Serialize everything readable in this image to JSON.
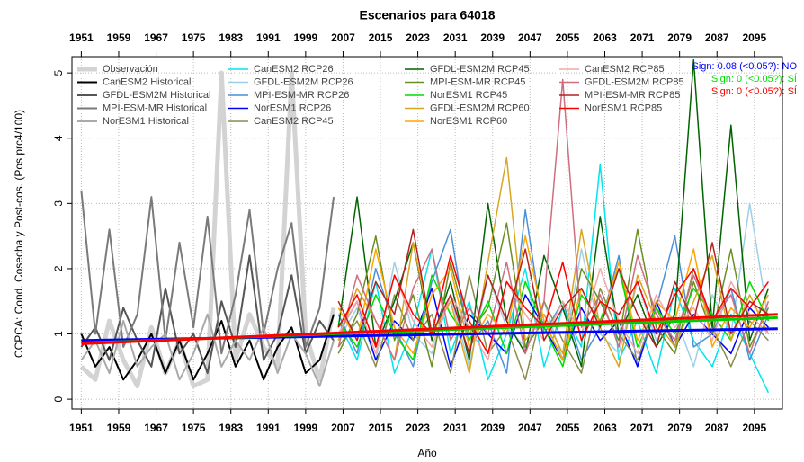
{
  "chart_data": {
    "type": "line",
    "title": "Escenarios  para 64018",
    "x_label": "Año",
    "y_label": "CCPCA: Cond. Cosecha y Post-cos. (Pos prc4/100)",
    "xlim": [
      1949,
      2101
    ],
    "ylim": [
      -0.15,
      5.25
    ],
    "xticks": [
      1951,
      1959,
      1967,
      1975,
      1983,
      1991,
      1999,
      2007,
      2015,
      2023,
      2031,
      2039,
      2047,
      2055,
      2063,
      2071,
      2079,
      2087,
      2095
    ],
    "yticks": [
      0,
      1,
      2,
      3,
      4,
      5
    ],
    "grid": true,
    "legend": "top-left",
    "series": [
      {
        "name": "Observación",
        "color": "#d3d3d3",
        "width": 5,
        "x": [
          1951,
          1954,
          1957,
          1960,
          1963,
          1966,
          1969,
          1972,
          1975,
          1978,
          1981,
          1984,
          1987,
          1990,
          1993,
          1996,
          1999,
          2002,
          2005
        ],
        "values": [
          0.5,
          0.3,
          1.2,
          0.6,
          0.2,
          1.1,
          0.4,
          0.9,
          0.2,
          0.3,
          5.0,
          0.6,
          1.3,
          0.8,
          0.5,
          5.0,
          1.0,
          0.3,
          1.4
        ]
      },
      {
        "name": "CanESM2 Historical",
        "color": "#000000",
        "width": 2,
        "x": [
          1951,
          1954,
          1957,
          1960,
          1963,
          1966,
          1969,
          1972,
          1975,
          1978,
          1981,
          1984,
          1987,
          1990,
          1993,
          1996,
          1999,
          2002,
          2005
        ],
        "values": [
          1.0,
          0.5,
          0.8,
          0.3,
          0.6,
          1.0,
          0.4,
          0.9,
          0.3,
          0.7,
          1.2,
          0.5,
          0.9,
          0.3,
          0.8,
          1.1,
          0.4,
          0.6,
          1.3
        ]
      },
      {
        "name": "GFDL-ESM2M Historical",
        "color": "#555555",
        "width": 2,
        "x": [
          1951,
          1954,
          1957,
          1960,
          1963,
          1966,
          1969,
          1972,
          1975,
          1978,
          1981,
          1984,
          1987,
          1990,
          1993,
          1996,
          1999,
          2002,
          2005
        ],
        "values": [
          0.8,
          1.1,
          0.6,
          1.4,
          0.9,
          0.5,
          1.7,
          0.7,
          1.0,
          0.4,
          1.5,
          0.8,
          2.2,
          0.6,
          1.0,
          1.9,
          0.7,
          1.2,
          0.9
        ]
      },
      {
        "name": "MPI-ESM-MR Historical",
        "color": "#7a7a7a",
        "width": 2,
        "x": [
          1951,
          1954,
          1957,
          1960,
          1963,
          1966,
          1969,
          1972,
          1975,
          1978,
          1981,
          1984,
          1987,
          1990,
          1993,
          1996,
          1999,
          2002,
          2005
        ],
        "values": [
          3.2,
          1.0,
          2.6,
          0.8,
          1.3,
          3.1,
          0.9,
          2.4,
          1.1,
          2.8,
          0.7,
          1.6,
          2.9,
          1.0,
          2.0,
          2.7,
          0.8,
          1.4,
          3.1
        ]
      },
      {
        "name": "NorESM1 Historical",
        "color": "#aaaaaa",
        "width": 2,
        "x": [
          1951,
          1954,
          1957,
          1960,
          1963,
          1966,
          1969,
          1972,
          1975,
          1978,
          1981,
          1984,
          1987,
          1990,
          1993,
          1996,
          1999,
          2002,
          2005
        ],
        "values": [
          0.6,
          0.9,
          0.4,
          1.2,
          0.5,
          0.8,
          1.0,
          0.3,
          0.7,
          1.3,
          0.5,
          0.9,
          0.6,
          1.1,
          0.4,
          1.0,
          0.7,
          0.2,
          0.9
        ]
      },
      {
        "name": "CanESM2 RCP26",
        "color": "#00e5ee",
        "width": 1.5,
        "x": [
          2006,
          2010,
          2014,
          2018,
          2022,
          2026,
          2030,
          2034,
          2038,
          2042,
          2046,
          2050,
          2054,
          2058,
          2062,
          2066,
          2070,
          2074,
          2078,
          2082,
          2086,
          2090,
          2094,
          2098
        ],
        "values": [
          1.2,
          0.6,
          1.8,
          0.4,
          1.1,
          2.3,
          0.7,
          1.5,
          0.3,
          1.0,
          2.0,
          0.5,
          1.4,
          0.8,
          3.6,
          0.6,
          1.2,
          0.4,
          1.7,
          0.9,
          0.5,
          1.3,
          0.7,
          0.1
        ]
      },
      {
        "name": "GFDL-ESM2M RCP26",
        "color": "#9fcfe8",
        "width": 1.5,
        "x": [
          2006,
          2010,
          2014,
          2018,
          2022,
          2026,
          2030,
          2034,
          2038,
          2042,
          2046,
          2050,
          2054,
          2058,
          2062,
          2066,
          2070,
          2074,
          2078,
          2082,
          2086,
          2090,
          2094,
          2098
        ],
        "values": [
          0.9,
          1.4,
          0.6,
          2.1,
          1.0,
          0.7,
          1.6,
          0.5,
          1.9,
          1.1,
          0.8,
          1.5,
          0.6,
          2.3,
          1.0,
          0.7,
          1.8,
          0.9,
          1.3,
          0.5,
          1.6,
          1.0,
          3.0,
          1.2
        ]
      },
      {
        "name": "MPI-ESM-MR RCP26",
        "color": "#4a90d9",
        "width": 1.5,
        "x": [
          2006,
          2010,
          2014,
          2018,
          2022,
          2026,
          2030,
          2034,
          2038,
          2042,
          2046,
          2050,
          2054,
          2058,
          2062,
          2066,
          2070,
          2074,
          2078,
          2082,
          2086,
          2090,
          2094,
          2098
        ],
        "values": [
          1.3,
          0.7,
          2.0,
          1.1,
          0.5,
          1.8,
          2.6,
          0.8,
          1.2,
          0.4,
          2.9,
          1.0,
          1.5,
          0.6,
          1.1,
          2.2,
          0.5,
          1.4,
          2.5,
          0.8,
          1.0,
          1.7,
          0.6,
          1.3
        ]
      },
      {
        "name": "NorESM1 RCP26",
        "color": "#0000ff",
        "width": 1.5,
        "x": [
          2006,
          2010,
          2014,
          2018,
          2022,
          2026,
          2030,
          2034,
          2038,
          2042,
          2046,
          2050,
          2054,
          2058,
          2062,
          2066,
          2070,
          2074,
          2078,
          2082,
          2086,
          2090,
          2094,
          2098
        ],
        "values": [
          1.0,
          1.5,
          0.6,
          1.2,
          0.9,
          1.7,
          0.5,
          1.3,
          1.0,
          0.7,
          1.6,
          1.1,
          0.6,
          1.4,
          0.9,
          1.2,
          0.5,
          1.5,
          0.8,
          1.3,
          1.0,
          0.7,
          1.4,
          1.1
        ]
      },
      {
        "name": "CanESM2 RCP45",
        "color": "#8b8b4e",
        "width": 1.5,
        "x": [
          2006,
          2010,
          2014,
          2018,
          2022,
          2026,
          2030,
          2034,
          2038,
          2042,
          2046,
          2050,
          2054,
          2058,
          2062,
          2066,
          2070,
          2074,
          2078,
          2082,
          2086,
          2090,
          2094,
          2098
        ],
        "values": [
          0.8,
          1.2,
          0.5,
          1.6,
          0.9,
          1.3,
          0.4,
          1.9,
          0.7,
          1.1,
          0.3,
          1.5,
          0.9,
          0.4,
          1.7,
          1.0,
          0.6,
          1.4,
          0.8,
          2.0,
          1.1,
          0.5,
          1.2,
          0.9
        ]
      },
      {
        "name": "GFDL-ESM2M RCP45",
        "color": "#006400",
        "width": 1.5,
        "x": [
          2006,
          2010,
          2014,
          2018,
          2022,
          2026,
          2030,
          2034,
          2038,
          2042,
          2046,
          2050,
          2054,
          2058,
          2062,
          2066,
          2070,
          2074,
          2078,
          2082,
          2086,
          2090,
          2094,
          2098
        ],
        "values": [
          1.1,
          3.1,
          0.8,
          1.5,
          2.4,
          0.9,
          1.8,
          0.6,
          3.0,
          1.2,
          0.7,
          2.2,
          1.4,
          0.5,
          2.8,
          1.0,
          1.6,
          0.8,
          1.3,
          5.2,
          1.1,
          4.2,
          0.9,
          1.7
        ]
      },
      {
        "name": "MPI-ESM-MR RCP45",
        "color": "#6b8e23",
        "width": 1.5,
        "x": [
          2006,
          2010,
          2014,
          2018,
          2022,
          2026,
          2030,
          2034,
          2038,
          2042,
          2046,
          2050,
          2054,
          2058,
          2062,
          2066,
          2070,
          2074,
          2078,
          2082,
          2086,
          2090,
          2094,
          2098
        ],
        "values": [
          0.7,
          1.3,
          2.5,
          0.9,
          1.6,
          0.5,
          2.1,
          1.0,
          1.4,
          2.7,
          0.8,
          1.2,
          0.6,
          2.0,
          1.5,
          0.9,
          2.6,
          1.1,
          0.7,
          1.8,
          1.0,
          2.3,
          0.8,
          1.4
        ]
      },
      {
        "name": "NorESM1 RCP45",
        "color": "#00dd00",
        "width": 1.5,
        "x": [
          2006,
          2010,
          2014,
          2018,
          2022,
          2026,
          2030,
          2034,
          2038,
          2042,
          2046,
          2050,
          2054,
          2058,
          2062,
          2066,
          2070,
          2074,
          2078,
          2082,
          2086,
          2090,
          2094,
          2098
        ],
        "values": [
          1.2,
          0.8,
          1.6,
          1.0,
          0.6,
          1.9,
          1.3,
          0.9,
          1.5,
          0.7,
          1.8,
          1.1,
          0.5,
          1.6,
          1.2,
          2.0,
          0.8,
          1.4,
          1.0,
          1.7,
          1.3,
          0.9,
          1.8,
          1.2
        ]
      },
      {
        "name": "GFDL-ESM2M RCP60",
        "color": "#daa520",
        "width": 1.5,
        "x": [
          2006,
          2010,
          2014,
          2018,
          2022,
          2026,
          2030,
          2034,
          2038,
          2042,
          2046,
          2050,
          2054,
          2058,
          2062,
          2066,
          2070,
          2074,
          2078,
          2082,
          2086,
          2090,
          2094,
          2098
        ],
        "values": [
          0.9,
          1.7,
          1.2,
          0.6,
          2.4,
          1.0,
          1.5,
          0.4,
          2.1,
          3.7,
          0.9,
          1.3,
          0.7,
          2.6,
          1.1,
          0.5,
          1.9,
          1.2,
          0.8,
          1.5,
          2.2,
          0.9,
          1.6,
          1.0
        ]
      },
      {
        "name": "NorESM1 RCP60",
        "color": "#ffa500",
        "width": 1.5,
        "x": [
          2006,
          2010,
          2014,
          2018,
          2022,
          2026,
          2030,
          2034,
          2038,
          2042,
          2046,
          2050,
          2054,
          2058,
          2062,
          2066,
          2070,
          2074,
          2078,
          2082,
          2086,
          2090,
          2094,
          2098
        ],
        "values": [
          1.4,
          0.9,
          2.3,
          1.1,
          0.7,
          1.6,
          2.0,
          0.8,
          1.3,
          1.0,
          2.5,
          1.2,
          0.6,
          1.7,
          1.1,
          2.1,
          0.9,
          1.5,
          1.2,
          2.3,
          0.8,
          1.4,
          1.1,
          1.6
        ]
      },
      {
        "name": "CanESM2 RCP85",
        "color": "#f4a7a7",
        "width": 1.5,
        "x": [
          2006,
          2010,
          2014,
          2018,
          2022,
          2026,
          2030,
          2034,
          2038,
          2042,
          2046,
          2050,
          2054,
          2058,
          2062,
          2066,
          2070,
          2074,
          2078,
          2082,
          2086,
          2090,
          2094,
          2098
        ],
        "values": [
          1.0,
          1.5,
          0.7,
          1.9,
          1.2,
          0.8,
          1.6,
          1.1,
          0.6,
          1.8,
          1.3,
          0.9,
          1.5,
          1.0,
          2.0,
          1.2,
          0.7,
          1.6,
          1.1,
          1.4,
          0.9,
          1.8,
          1.3,
          1.0
        ]
      },
      {
        "name": "GFDL-ESM2M RCP85",
        "color": "#cd6f80",
        "width": 1.5,
        "x": [
          2006,
          2010,
          2014,
          2018,
          2022,
          2026,
          2030,
          2034,
          2038,
          2042,
          2046,
          2050,
          2054,
          2058,
          2062,
          2066,
          2070,
          2074,
          2078,
          2082,
          2086,
          2090,
          2094,
          2098
        ],
        "values": [
          0.8,
          1.9,
          1.2,
          0.6,
          1.7,
          2.3,
          0.9,
          1.4,
          1.0,
          2.1,
          0.7,
          1.5,
          4.9,
          1.1,
          1.6,
          0.8,
          2.2,
          1.3,
          0.9,
          1.9,
          1.2,
          1.6,
          0.7,
          1.5
        ]
      },
      {
        "name": "MPI-ESM-MR RCP85",
        "color": "#b22222",
        "width": 1.5,
        "x": [
          2006,
          2010,
          2014,
          2018,
          2022,
          2026,
          2030,
          2034,
          2038,
          2042,
          2046,
          2050,
          2054,
          2058,
          2062,
          2066,
          2070,
          2074,
          2078,
          2082,
          2086,
          2090,
          2094,
          2098
        ],
        "values": [
          1.5,
          0.9,
          1.8,
          1.3,
          2.6,
          1.0,
          1.6,
          0.7,
          1.9,
          1.2,
          2.3,
          0.9,
          1.4,
          1.7,
          1.1,
          2.0,
          1.3,
          0.8,
          1.8,
          1.2,
          2.4,
          1.0,
          1.5,
          1.3
        ]
      },
      {
        "name": "NorESM1 RCP85",
        "color": "#ff0000",
        "width": 1.5,
        "x": [
          2006,
          2010,
          2014,
          2018,
          2022,
          2026,
          2030,
          2034,
          2038,
          2042,
          2046,
          2050,
          2054,
          2058,
          2062,
          2066,
          2070,
          2074,
          2078,
          2082,
          2086,
          2090,
          2094,
          2098
        ],
        "values": [
          1.1,
          1.6,
          0.8,
          1.9,
          1.3,
          1.0,
          2.2,
          1.2,
          0.7,
          1.8,
          1.4,
          1.1,
          2.1,
          0.9,
          1.5,
          1.3,
          1.8,
          1.0,
          1.6,
          2.0,
          1.2,
          1.7,
          1.4,
          1.8
        ]
      }
    ],
    "trend_lines": [
      {
        "color": "#0000ff",
        "x": [
          1951,
          2100
        ],
        "values": [
          0.9,
          1.08
        ]
      },
      {
        "color": "#00cc00",
        "x": [
          1951,
          2100
        ],
        "values": [
          0.86,
          1.25
        ]
      },
      {
        "color": "#ff0000",
        "x": [
          1951,
          2100
        ],
        "values": [
          0.85,
          1.3
        ]
      }
    ],
    "annotations": [
      {
        "text": "Sign: 0.08  (<0.05?): NO",
        "color": "#0000ff"
      },
      {
        "text": "Sign: 0  (<0.05?): SÍ",
        "color": "#00dd00"
      },
      {
        "text": "Sign: 0  (<0.05?): SÍ",
        "color": "#ff0000"
      }
    ]
  }
}
